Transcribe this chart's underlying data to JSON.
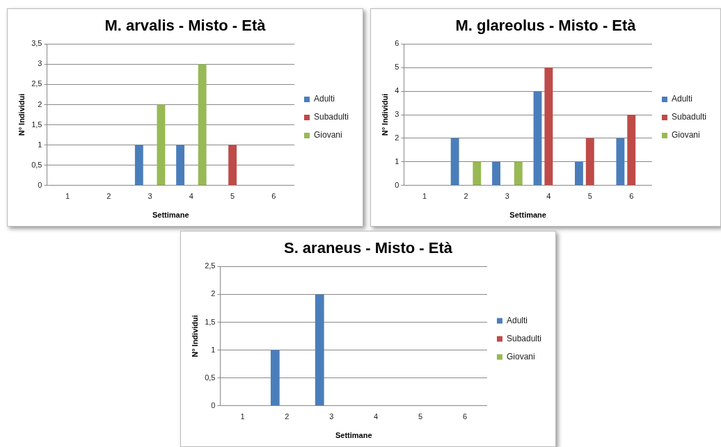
{
  "chart_data": [
    {
      "type": "bar",
      "title": "M. arvalis - Misto - Età",
      "xlabel": "Settimane",
      "ylabel": "N° Individui",
      "categories": [
        "1",
        "2",
        "3",
        "4",
        "5",
        "6"
      ],
      "series": [
        {
          "name": "Adulti",
          "color": "#4a7ebb",
          "values": [
            0,
            0,
            1,
            1,
            0,
            0
          ]
        },
        {
          "name": "Subadulti",
          "color": "#be4b48",
          "values": [
            0,
            0,
            0,
            0,
            1,
            0
          ]
        },
        {
          "name": "Giovani",
          "color": "#98b954",
          "values": [
            0,
            0,
            2,
            3,
            0,
            0
          ]
        }
      ],
      "ylim": [
        0,
        3.5
      ],
      "yticks": [
        0,
        {
          "value": 0.5,
          "label": "0,5"
        },
        1,
        {
          "value": 1.5,
          "label": "1,5"
        },
        2,
        {
          "value": 2.5,
          "label": "2,5"
        },
        3,
        {
          "value": 3.5,
          "label": "3,5"
        }
      ],
      "grid": "y",
      "legend": "right"
    },
    {
      "type": "bar",
      "title": "M. glareolus - Misto - Età",
      "xlabel": "Settimane",
      "ylabel": "N° Individui",
      "categories": [
        "1",
        "2",
        "3",
        "4",
        "5",
        "6"
      ],
      "series": [
        {
          "name": "Adulti",
          "color": "#4a7ebb",
          "values": [
            0,
            2,
            1,
            4,
            1,
            2
          ]
        },
        {
          "name": "Subadulti",
          "color": "#be4b48",
          "values": [
            0,
            0,
            0,
            5,
            2,
            3
          ]
        },
        {
          "name": "Giovani",
          "color": "#98b954",
          "values": [
            0,
            1,
            1,
            0,
            0,
            0
          ]
        }
      ],
      "ylim": [
        0,
        6
      ],
      "yticks": [
        0,
        1,
        2,
        3,
        4,
        5,
        6
      ],
      "grid": "y",
      "legend": "right"
    },
    {
      "type": "bar",
      "title": "S. araneus - Misto - Età",
      "xlabel": "Settimane",
      "ylabel": "N° Individui",
      "categories": [
        "1",
        "2",
        "3",
        "4",
        "5",
        "6"
      ],
      "series": [
        {
          "name": "Adulti",
          "color": "#4a7ebb",
          "values": [
            0,
            1,
            2,
            0,
            0,
            0
          ]
        },
        {
          "name": "Subadulti",
          "color": "#be4b48",
          "values": [
            0,
            0,
            0,
            0,
            0,
            0
          ]
        },
        {
          "name": "Giovani",
          "color": "#98b954",
          "values": [
            0,
            0,
            0,
            0,
            0,
            0
          ]
        }
      ],
      "ylim": [
        0,
        2.5
      ],
      "yticks": [
        0,
        {
          "value": 0.5,
          "label": "0,5"
        },
        1,
        {
          "value": 1.5,
          "label": "1,5"
        },
        2,
        {
          "value": 2.5,
          "label": "2,5"
        }
      ],
      "grid": "y",
      "legend": "right"
    }
  ]
}
